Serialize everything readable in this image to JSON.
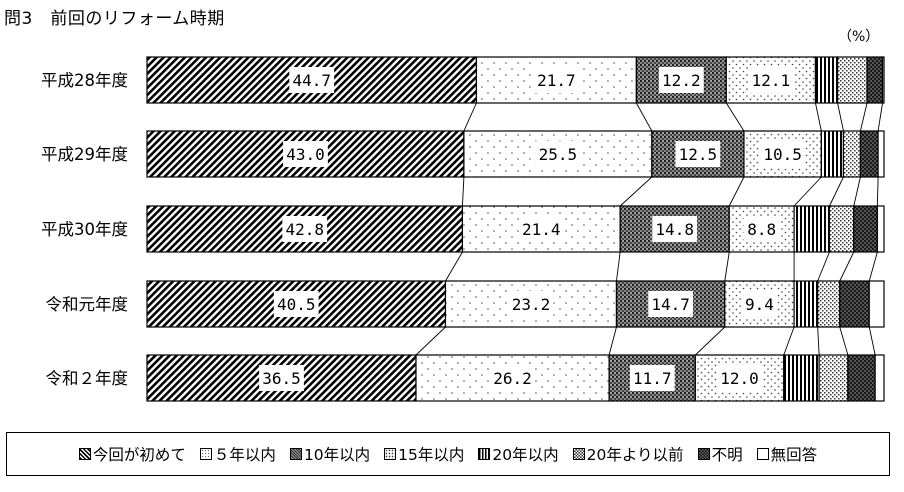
{
  "title": "問3　前回のリフォーム時期",
  "unit": "（%）",
  "chart_data": {
    "type": "bar",
    "orientation": "horizontal",
    "stacked": true,
    "categories": [
      "平成28年度",
      "平成29年度",
      "平成30年度",
      "令和元年度",
      "令和２年度"
    ],
    "series": [
      {
        "name": "今回が初めて",
        "values": [
          44.7,
          43.0,
          42.8,
          40.5,
          36.5
        ]
      },
      {
        "name": "５年以内",
        "values": [
          21.7,
          25.5,
          21.4,
          23.2,
          26.2
        ]
      },
      {
        "name": "10年以内",
        "values": [
          12.2,
          12.5,
          14.8,
          14.7,
          11.7
        ]
      },
      {
        "name": "15年以内",
        "values": [
          12.1,
          10.5,
          8.8,
          9.4,
          12.0
        ]
      },
      {
        "name": "20年以内",
        "values": [
          3.0,
          3.0,
          4.8,
          3.2,
          4.8
        ]
      },
      {
        "name": "20年より以前",
        "values": [
          4.0,
          2.3,
          3.3,
          3.0,
          3.9
        ]
      },
      {
        "name": "不明",
        "values": [
          2.1,
          2.4,
          3.2,
          4.0,
          3.7
        ]
      },
      {
        "name": "無回答",
        "values": [
          0.2,
          0.8,
          0.9,
          2.0,
          1.2
        ]
      }
    ],
    "value_labels": [
      [
        "44.7",
        "21.7",
        "12.2",
        "12.1",
        "",
        "",
        "",
        ""
      ],
      [
        "43.0",
        "25.5",
        "12.5",
        "10.5",
        "",
        "",
        "",
        ""
      ],
      [
        "42.8",
        "21.4",
        "14.8",
        "8.8",
        "",
        "",
        "",
        ""
      ],
      [
        "40.5",
        "23.2",
        "14.7",
        "9.4",
        "",
        "",
        "",
        ""
      ],
      [
        "36.5",
        "26.2",
        "11.7",
        "12.0",
        "",
        "",
        "",
        ""
      ]
    ],
    "xlim": [
      0,
      100
    ],
    "grid": false,
    "legend_position": "bottom",
    "connector_lines": true
  },
  "legend": {
    "items": [
      {
        "label": "今回が初めて",
        "pattern": "diag"
      },
      {
        "label": "５年以内",
        "pattern": "dots"
      },
      {
        "label": "10年以内",
        "pattern": "dense"
      },
      {
        "label": "15年以内",
        "pattern": "dots2"
      },
      {
        "label": "20年以内",
        "pattern": "vlines"
      },
      {
        "label": "20年より以前",
        "pattern": "checks"
      },
      {
        "label": "不明",
        "pattern": "darkcheck"
      },
      {
        "label": "無回答",
        "pattern": "blank"
      }
    ]
  },
  "colors": {
    "stroke": "#000000",
    "background": "#ffffff"
  }
}
